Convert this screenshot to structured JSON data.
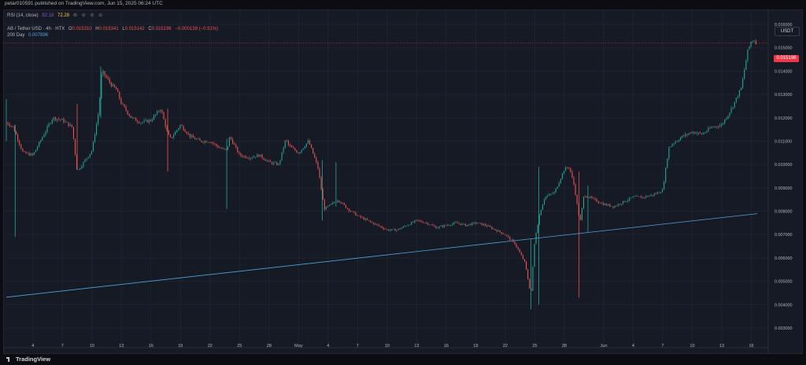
{
  "header": {
    "publish_text": "petar010591 published on TradingView.com, Jun 15, 2025 06:24 UTC"
  },
  "rsi": {
    "name": "RSI (14, close)",
    "value1": "82.18",
    "value2": "72.28",
    "icons": "⚙ ⊘ ⊘ ⊘"
  },
  "ohlc": {
    "symbol": "AB / Tether USD · 4h · HTX",
    "open_label": "O",
    "open": "0.015310",
    "high_label": "H",
    "high": "0.015341",
    "low_label": "L",
    "low": "0.015142",
    "close_label": "C",
    "close": "0.015196",
    "change": "−0.000139 (−0.91%)"
  },
  "ma": {
    "label": "200 Day",
    "value": "0.007896"
  },
  "currency_label": "USDT",
  "last_price_label": "0.015196",
  "footer": {
    "brand": "TradingView"
  },
  "colors": {
    "up": "#26a69a",
    "down": "#ef5350",
    "ma": "#4fa3d9",
    "background": "#161a25",
    "last_price": "#f23645"
  },
  "chart_data": {
    "type": "candlestick",
    "title": "",
    "xlabel": "",
    "ylabel": "",
    "ylim": [
      0.0025,
      0.0165
    ],
    "y_ticks": [
      "0.016000",
      "0.015000",
      "0.014000",
      "0.013000",
      "0.012000",
      "0.011000",
      "0.010000",
      "0.009000",
      "0.008000",
      "0.007000",
      "0.006000",
      "0.005000",
      "0.004000",
      "0.003000"
    ],
    "y_tick_values": [
      0.016,
      0.015,
      0.014,
      0.013,
      0.012,
      0.011,
      0.01,
      0.009,
      0.008,
      0.007,
      0.006,
      0.005,
      0.004,
      0.003
    ],
    "x_ticks": [
      "4",
      "7",
      "10",
      "13",
      "16",
      "19",
      "22",
      "25",
      "28",
      "May",
      "4",
      "7",
      "10",
      "13",
      "16",
      "19",
      "22",
      "25",
      "28",
      "Jun",
      "4",
      "7",
      "10",
      "13",
      "16"
    ],
    "x_tick_days": [
      4,
      7,
      10,
      13,
      16,
      19,
      22,
      25,
      28,
      31,
      34,
      37,
      40,
      43,
      46,
      49,
      52,
      55,
      58,
      62,
      65,
      68,
      71,
      74,
      77
    ],
    "x_start_day": 1.3,
    "x_end_day": 77.6,
    "last_price": 0.015196,
    "grid": true,
    "close_series": [
      [
        1.3,
        0.0118
      ],
      [
        2,
        0.0116
      ],
      [
        3,
        0.0105
      ],
      [
        4,
        0.0104
      ],
      [
        5,
        0.0112
      ],
      [
        6,
        0.012
      ],
      [
        7,
        0.0119
      ],
      [
        8,
        0.0116
      ],
      [
        8.5,
        0.0097
      ],
      [
        9,
        0.01
      ],
      [
        10,
        0.0106
      ],
      [
        10.7,
        0.0123
      ],
      [
        11,
        0.014
      ],
      [
        12,
        0.0134
      ],
      [
        12.5,
        0.0132
      ],
      [
        13,
        0.0126
      ],
      [
        14,
        0.012
      ],
      [
        15,
        0.0118
      ],
      [
        16,
        0.0119
      ],
      [
        17,
        0.0124
      ],
      [
        17.7,
        0.0113
      ],
      [
        18,
        0.0111
      ],
      [
        19,
        0.0117
      ],
      [
        20,
        0.0112
      ],
      [
        21,
        0.011
      ],
      [
        22,
        0.011
      ],
      [
        23,
        0.0107
      ],
      [
        23.7,
        0.0106
      ],
      [
        24,
        0.0112
      ],
      [
        25,
        0.0104
      ],
      [
        26,
        0.0103
      ],
      [
        27,
        0.0104
      ],
      [
        28,
        0.0101
      ],
      [
        29,
        0.01
      ],
      [
        29.7,
        0.0111
      ],
      [
        30,
        0.0108
      ],
      [
        31,
        0.0105
      ],
      [
        32,
        0.011
      ],
      [
        32.7,
        0.0102
      ],
      [
        33,
        0.0098
      ],
      [
        33.6,
        0.0081
      ],
      [
        34,
        0.0082
      ],
      [
        35,
        0.0085
      ],
      [
        36,
        0.0081
      ],
      [
        37,
        0.0078
      ],
      [
        38,
        0.0076
      ],
      [
        39,
        0.0074
      ],
      [
        40,
        0.0072
      ],
      [
        41,
        0.0072
      ],
      [
        42,
        0.0074
      ],
      [
        43,
        0.0076
      ],
      [
        44,
        0.0075
      ],
      [
        45,
        0.0073
      ],
      [
        46,
        0.0074
      ],
      [
        47,
        0.0075
      ],
      [
        48,
        0.0074
      ],
      [
        49,
        0.0075
      ],
      [
        50,
        0.0074
      ],
      [
        51,
        0.0072
      ],
      [
        52,
        0.007
      ],
      [
        53,
        0.0066
      ],
      [
        54,
        0.0058
      ],
      [
        54.6,
        0.0044
      ],
      [
        55,
        0.0068
      ],
      [
        55.5,
        0.0079
      ],
      [
        56,
        0.0086
      ],
      [
        57,
        0.0088
      ],
      [
        57.6,
        0.0094
      ],
      [
        58,
        0.0098
      ],
      [
        58.5,
        0.0099
      ],
      [
        59,
        0.0091
      ],
      [
        59.6,
        0.0075
      ],
      [
        60,
        0.0087
      ],
      [
        61,
        0.0085
      ],
      [
        62,
        0.0083
      ],
      [
        63,
        0.0082
      ],
      [
        64,
        0.0084
      ],
      [
        65,
        0.0086
      ],
      [
        66,
        0.0086
      ],
      [
        67,
        0.0087
      ],
      [
        68,
        0.0089
      ],
      [
        68.6,
        0.0107
      ],
      [
        69,
        0.0109
      ],
      [
        70,
        0.0112
      ],
      [
        71,
        0.0114
      ],
      [
        72,
        0.0113
      ],
      [
        73,
        0.0116
      ],
      [
        74,
        0.0117
      ],
      [
        75,
        0.0124
      ],
      [
        76,
        0.0133
      ],
      [
        76.6,
        0.0148
      ],
      [
        77,
        0.0153
      ],
      [
        77.3,
        0.01532
      ],
      [
        77.6,
        0.015196
      ]
    ],
    "ma_series": [
      [
        1.3,
        0.00432
      ],
      [
        77.6,
        0.007896
      ]
    ]
  }
}
